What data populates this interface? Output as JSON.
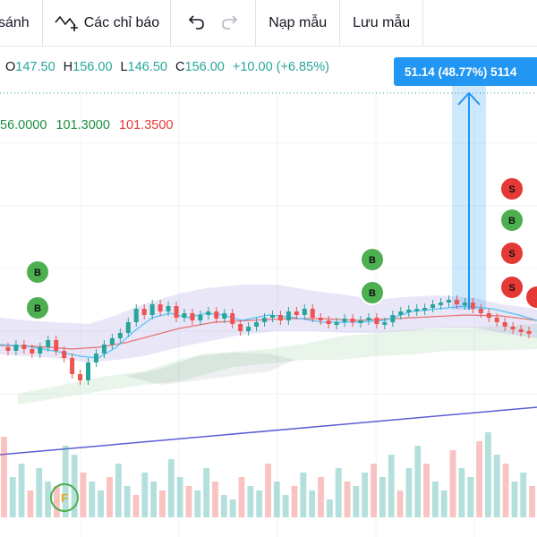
{
  "toolbar": {
    "compare_label": "sánh",
    "indicators_label": "Các chỉ báo",
    "load_template_label": "Nạp mẫu",
    "save_template_label": "Lưu mẫu"
  },
  "legend": {
    "open_key": "O",
    "open_val": "147.50",
    "high_key": "H",
    "high_val": "156.00",
    "low_key": "L",
    "low_val": "146.50",
    "close_key": "C",
    "close_val": "156.00",
    "change": "+10.00 (+6.85%)"
  },
  "indicator_values": [
    "56.0000",
    "101.3000",
    "101.3500"
  ],
  "measure_label": "51.14 (48.77%) 5114",
  "signals": {
    "buy": "B",
    "sell": "S",
    "flag": "F"
  },
  "colors": {
    "up": "#26a69a",
    "down": "#ef5350",
    "accent": "#2196f3",
    "buy_marker": "#4caf50",
    "sell_marker": "#e53935",
    "trend_line": "#5c5cd6"
  }
}
